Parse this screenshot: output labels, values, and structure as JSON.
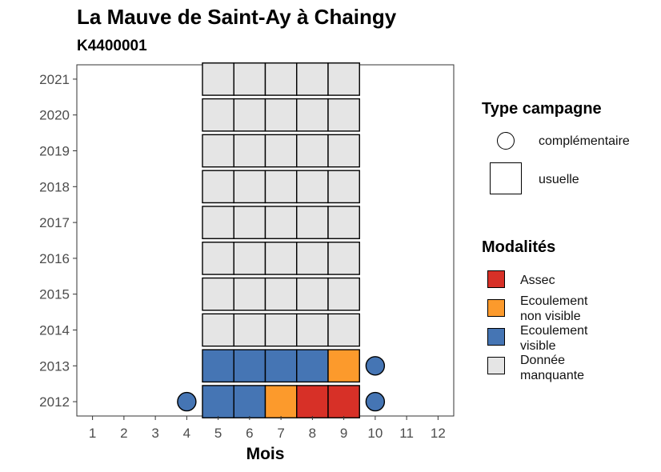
{
  "title": "La Mauve de Saint-Ay à Chaingy",
  "subtitle": "K4400001",
  "colors": {
    "assec": "#d73027",
    "ecoulement_non_visible": "#fc9a2c",
    "ecoulement_visible": "#4575b4",
    "donnee_manquante": "#e5e5e5"
  },
  "legend": {
    "type_title": "Type campagne",
    "type_items": [
      {
        "label": "complémentaire",
        "shape": "circle"
      },
      {
        "label": "usuelle",
        "shape": "square"
      }
    ],
    "modalites_title": "Modalités",
    "modalites_items": [
      {
        "label": "Assec",
        "key": "assec"
      },
      {
        "label": "Ecoulement non visible",
        "key": "ecoulement_non_visible"
      },
      {
        "label": "Ecoulement visible",
        "key": "ecoulement_visible"
      },
      {
        "label": "Donnée manquante",
        "key": "donnee_manquante"
      }
    ]
  },
  "chart_data": {
    "type": "heatmap",
    "title": "La Mauve de Saint-Ay à Chaingy",
    "subtitle": "K4400001",
    "xlabel": "Mois",
    "ylabel": "",
    "x_ticks": [
      1,
      2,
      3,
      4,
      5,
      6,
      7,
      8,
      9,
      10,
      11,
      12
    ],
    "y_ticks": [
      2012,
      2013,
      2014,
      2015,
      2016,
      2017,
      2018,
      2019,
      2020,
      2021
    ],
    "xlim": [
      0.5,
      12.5
    ],
    "ylim": [
      2011.6,
      2021.4
    ],
    "usuelle": [
      {
        "year": 2021,
        "months": [
          "donnee_manquante",
          "donnee_manquante",
          "donnee_manquante",
          "donnee_manquante",
          "donnee_manquante"
        ]
      },
      {
        "year": 2020,
        "months": [
          "donnee_manquante",
          "donnee_manquante",
          "donnee_manquante",
          "donnee_manquante",
          "donnee_manquante"
        ]
      },
      {
        "year": 2019,
        "months": [
          "donnee_manquante",
          "donnee_manquante",
          "donnee_manquante",
          "donnee_manquante",
          "donnee_manquante"
        ]
      },
      {
        "year": 2018,
        "months": [
          "donnee_manquante",
          "donnee_manquante",
          "donnee_manquante",
          "donnee_manquante",
          "donnee_manquante"
        ]
      },
      {
        "year": 2017,
        "months": [
          "donnee_manquante",
          "donnee_manquante",
          "donnee_manquante",
          "donnee_manquante",
          "donnee_manquante"
        ]
      },
      {
        "year": 2016,
        "months": [
          "donnee_manquante",
          "donnee_manquante",
          "donnee_manquante",
          "donnee_manquante",
          "donnee_manquante"
        ]
      },
      {
        "year": 2015,
        "months": [
          "donnee_manquante",
          "donnee_manquante",
          "donnee_manquante",
          "donnee_manquante",
          "donnee_manquante"
        ]
      },
      {
        "year": 2014,
        "months": [
          "donnee_manquante",
          "donnee_manquante",
          "donnee_manquante",
          "donnee_manquante",
          "donnee_manquante"
        ]
      },
      {
        "year": 2013,
        "months": [
          "ecoulement_visible",
          "ecoulement_visible",
          "ecoulement_visible",
          "ecoulement_visible",
          "ecoulement_non_visible"
        ]
      },
      {
        "year": 2012,
        "months": [
          "ecoulement_visible",
          "ecoulement_visible",
          "ecoulement_non_visible",
          "assec",
          "assec"
        ]
      }
    ],
    "usuelle_months": [
      5,
      6,
      7,
      8,
      9
    ],
    "complementaire": [
      {
        "year": 2013,
        "month": 10,
        "modalite": "ecoulement_visible"
      },
      {
        "year": 2012,
        "month": 4,
        "modalite": "ecoulement_visible"
      },
      {
        "year": 2012,
        "month": 10,
        "modalite": "ecoulement_visible"
      }
    ],
    "grid": false,
    "legend_position": "right"
  }
}
